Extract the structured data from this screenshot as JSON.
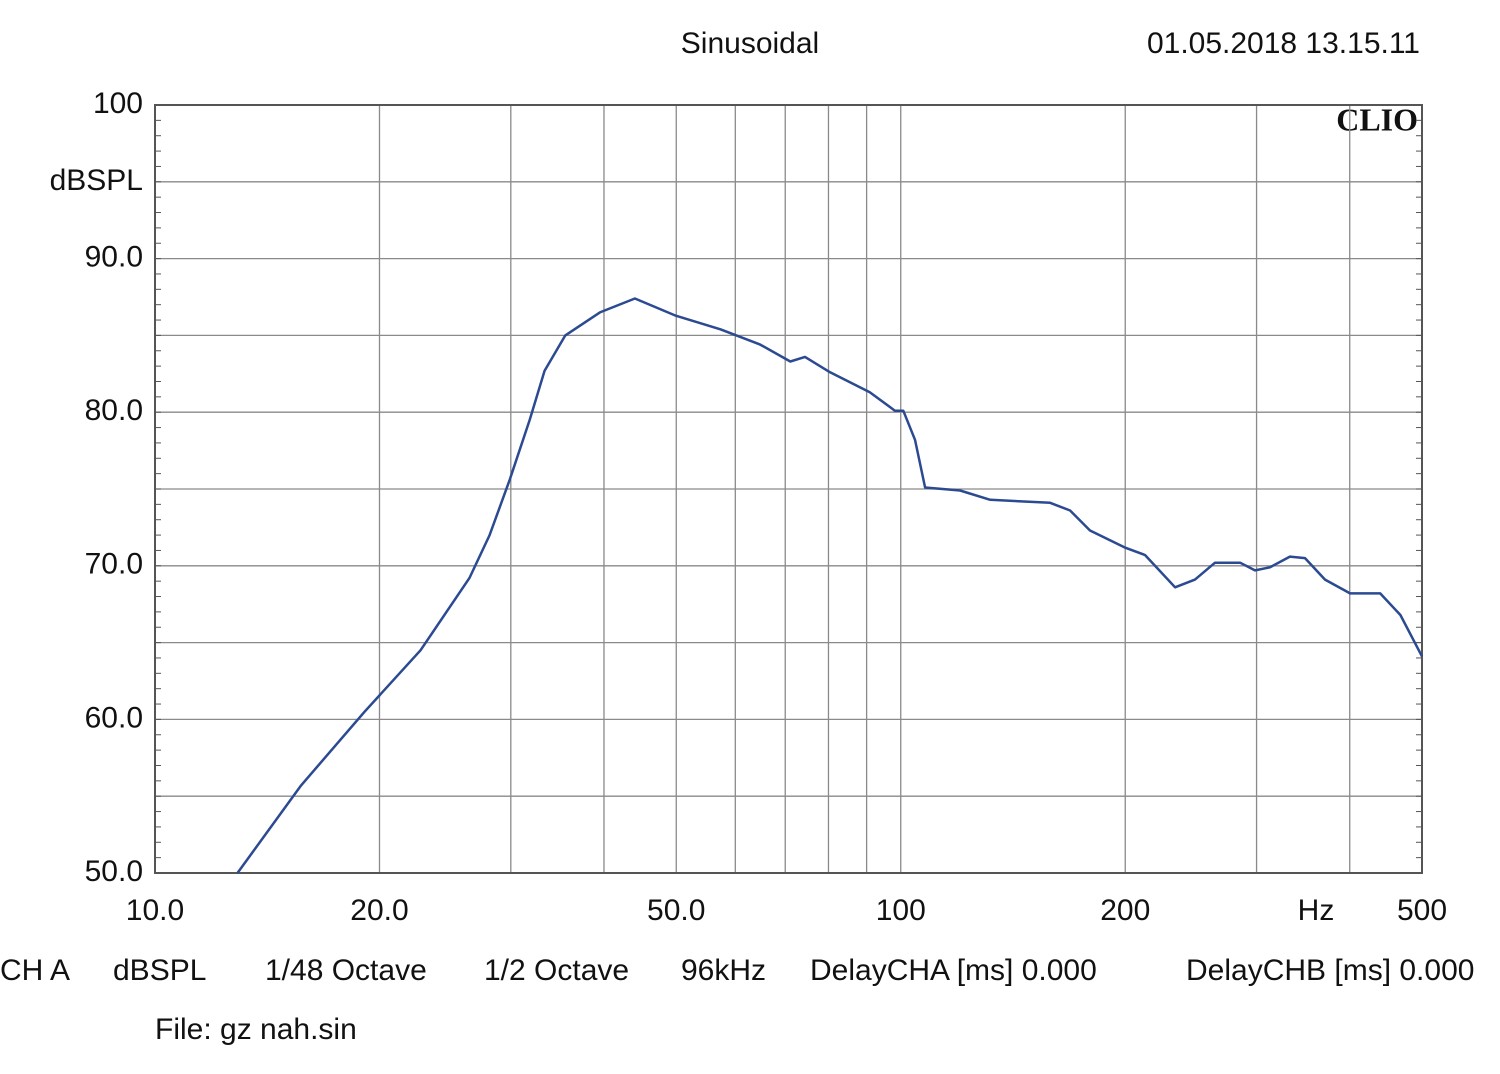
{
  "chart_data": {
    "type": "line",
    "title": "Sinusoidal",
    "timestamp": "01.05.2018 13.15.11",
    "brand": "CLIO",
    "y_label": "dBSPL",
    "x_label": "Hz",
    "x_scale": "log",
    "x": [
      12.9,
      15.7,
      19.1,
      22.7,
      26.4,
      28.1,
      29.9,
      31.8,
      33.3,
      35.5,
      39.5,
      44.0,
      49.8,
      57.3,
      64.8,
      71.1,
      74.4,
      80.4,
      90.9,
      98.2,
      100.8,
      104.5,
      107.8,
      120.1,
      131.8,
      158.6,
      168.7,
      179.4,
      199.6,
      212.6,
      233.3,
      248.1,
      263.9,
      285.1,
      298.6,
      312.7,
      332.5,
      348.4,
      370.6,
      400.4,
      439.5,
      467.7,
      500
    ],
    "series": [
      {
        "color": "#2b4a92",
        "values": [
          50.0,
          55.7,
          60.5,
          64.5,
          69.2,
          72.0,
          75.6,
          79.5,
          82.7,
          85.0,
          86.5,
          87.4,
          86.3,
          85.4,
          84.4,
          83.3,
          83.6,
          82.6,
          81.3,
          80.1,
          80.1,
          78.2,
          75.1,
          74.9,
          74.3,
          74.1,
          73.6,
          72.3,
          71.2,
          70.7,
          68.6,
          69.1,
          70.2,
          70.2,
          69.7,
          69.9,
          70.6,
          70.5,
          69.1,
          68.2,
          68.2,
          66.8,
          64.1
        ]
      }
    ],
    "xlim": [
      10,
      500
    ],
    "ylim": [
      50,
      100
    ],
    "xticks": [
      {
        "value": 10,
        "label": "10.0"
      },
      {
        "value": 20,
        "label": "20.0"
      },
      {
        "value": 50,
        "label": "50.0"
      },
      100,
      200,
      500
    ],
    "x_minor_ticks": [
      30,
      40,
      60,
      70,
      80,
      90,
      300,
      400
    ],
    "yticks": [
      100,
      {
        "value": 90,
        "label": "90.0"
      },
      {
        "value": 80,
        "label": "80.0"
      },
      {
        "value": 70,
        "label": "70.0"
      },
      {
        "value": 60,
        "label": "60.0"
      },
      {
        "value": 50,
        "label": "50.0"
      }
    ],
    "y_minor_ticks": [
      95,
      85,
      75,
      65,
      55
    ],
    "grid": true
  },
  "footer": {
    "settings": [
      "CH A",
      "dBSPL",
      "1/48 Octave",
      "1/2 Octave",
      "96kHz",
      "DelayCHA [ms] 0.000",
      "DelayCHB [ms] 0.000"
    ],
    "file": "File: gz nah.sin"
  }
}
